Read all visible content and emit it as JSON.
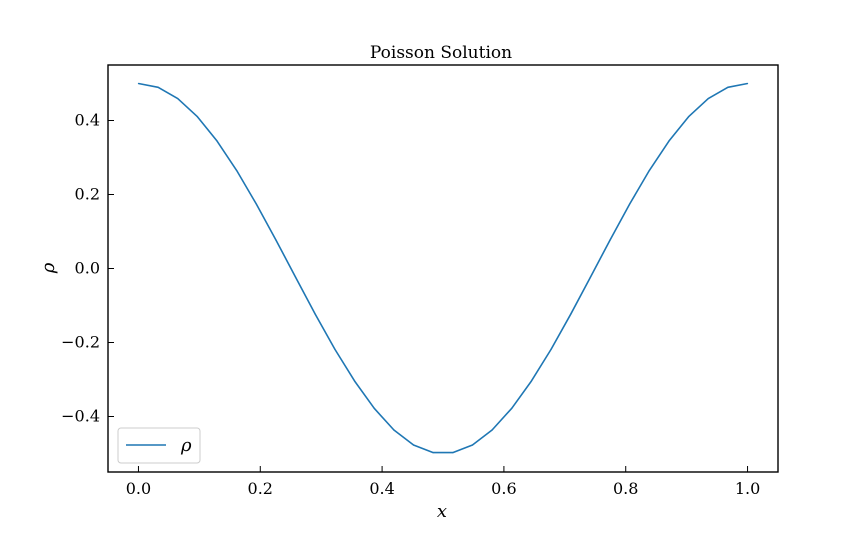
{
  "chart_data": {
    "type": "line",
    "title": "Poisson Solution",
    "xlabel": "x",
    "ylabel": "ρ",
    "xlim": [
      -0.05,
      1.05
    ],
    "ylim": [
      -0.55,
      0.55
    ],
    "xticks": [
      0.0,
      0.2,
      0.4,
      0.6,
      0.8,
      1.0
    ],
    "xtick_labels": [
      "0.0",
      "0.2",
      "0.4",
      "0.6",
      "0.8",
      "1.0"
    ],
    "yticks": [
      -0.4,
      -0.2,
      0.0,
      0.2,
      0.4
    ],
    "ytick_labels": [
      "−0.4",
      "−0.2",
      "0.0",
      "0.2",
      "0.4"
    ],
    "grid": false,
    "legend_position": "lower-left",
    "series": [
      {
        "name": "ρ",
        "color": "#1f77b4",
        "x": [
          0.0,
          0.0323,
          0.0645,
          0.0968,
          0.129,
          0.1613,
          0.1935,
          0.2258,
          0.2581,
          0.2903,
          0.3226,
          0.3548,
          0.3871,
          0.4194,
          0.4516,
          0.4839,
          0.5161,
          0.5484,
          0.5806,
          0.6129,
          0.6452,
          0.6774,
          0.7097,
          0.7419,
          0.7742,
          0.8065,
          0.8387,
          0.871,
          0.9032,
          0.9355,
          0.9677,
          1.0
        ],
        "y": [
          0.5,
          0.4897,
          0.4593,
          0.4103,
          0.3445,
          0.2648,
          0.1743,
          0.0768,
          -0.024,
          -0.1235,
          -0.2186,
          -0.304,
          -0.3779,
          -0.4365,
          -0.4771,
          -0.4975,
          -0.4975,
          -0.4771,
          -0.4365,
          -0.3779,
          -0.304,
          -0.2186,
          -0.1235,
          -0.024,
          0.0768,
          0.1743,
          0.2648,
          0.3445,
          0.4103,
          0.4593,
          0.4897,
          0.5
        ]
      }
    ]
  }
}
